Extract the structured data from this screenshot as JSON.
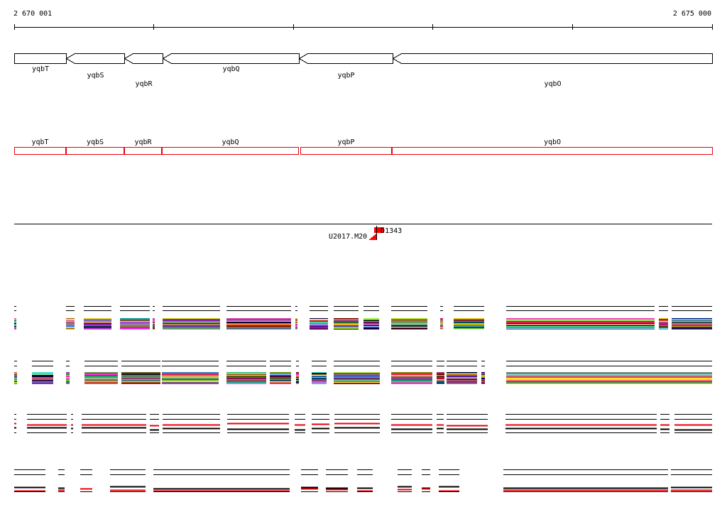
{
  "axis": {
    "start_label": "2 670 001",
    "end_label": "2 675 000",
    "start": 2670001,
    "end": 2675000
  },
  "colors": {
    "gene_outline": "#000000",
    "annotation_outline": "#e8000b",
    "marker_fill": "#ff0000",
    "black": "#000000",
    "red": "#e8000b"
  },
  "genes": [
    {
      "name": "yqbT",
      "start": 2670001,
      "end": 2670370,
      "strand": "+"
    },
    {
      "name": "yqbS",
      "start": 2670370,
      "end": 2670790,
      "strand": "-"
    },
    {
      "name": "yqbR",
      "start": 2670790,
      "end": 2671065,
      "strand": "-"
    },
    {
      "name": "yqbQ",
      "start": 2671065,
      "end": 2672040,
      "strand": "-"
    },
    {
      "name": "yqbP",
      "start": 2672040,
      "end": 2672710,
      "strand": "-"
    },
    {
      "name": "yqbO",
      "start": 2672710,
      "end": 2675000,
      "strand": "-"
    }
  ],
  "annotations": [
    {
      "name": "yqbT",
      "start": 2670001,
      "end": 2670365
    },
    {
      "name": "yqbS",
      "start": 2670370,
      "end": 2670785
    },
    {
      "name": "yqbR",
      "start": 2670790,
      "end": 2671055
    },
    {
      "name": "yqbQ",
      "start": 2671060,
      "end": 2672035
    },
    {
      "name": "yqbP",
      "start": 2672050,
      "end": 2672700
    },
    {
      "name": "yqbO",
      "start": 2672705,
      "end": 2675000
    }
  ],
  "markers": [
    {
      "name": "U2017.M20",
      "position": 2672565
    },
    {
      "name": "D1343",
      "position": 2672605
    }
  ],
  "tracks": [
    {
      "id": "track-1",
      "style": "multicolor",
      "segments": [
        [
          2670001,
          2670010
        ],
        [
          2670370,
          2670435
        ],
        [
          2670500,
          2670700
        ],
        [
          2670760,
          2670970
        ],
        [
          2670995,
          2671005
        ],
        [
          2671065,
          2671475
        ],
        [
          2671520,
          2671985
        ],
        [
          2672015,
          2672030
        ],
        [
          2672115,
          2672250
        ],
        [
          2672290,
          2672465
        ],
        [
          2672505,
          2672615
        ],
        [
          2672700,
          2672960
        ],
        [
          2673050,
          2673075
        ],
        [
          2673150,
          2673370
        ],
        [
          2673525,
          2674590
        ],
        [
          2674620,
          2674685
        ],
        [
          2674710,
          2675000
        ]
      ]
    },
    {
      "id": "track-2",
      "style": "multicolor",
      "segments": [
        [
          2670001,
          2670020
        ],
        [
          2670130,
          2670280
        ],
        [
          2670370,
          2670400
        ],
        [
          2670505,
          2670745
        ],
        [
          2670770,
          2671050
        ],
        [
          2671060,
          2671465
        ],
        [
          2671520,
          2671805
        ],
        [
          2671830,
          2671985
        ],
        [
          2672020,
          2672040
        ],
        [
          2672130,
          2672240
        ],
        [
          2672290,
          2672620
        ],
        [
          2672700,
          2672995
        ],
        [
          2673025,
          2673085
        ],
        [
          2673100,
          2673315
        ],
        [
          2673345,
          2673375
        ],
        [
          2673525,
          2675000
        ]
      ]
    },
    {
      "id": "track-3",
      "style": "redblack",
      "segments": [
        [
          2670001,
          2670015
        ],
        [
          2670090,
          2670375
        ],
        [
          2670410,
          2670420
        ],
        [
          2670485,
          2670945
        ],
        [
          2670970,
          2671040
        ],
        [
          2671065,
          2671475
        ],
        [
          2671525,
          2671970
        ],
        [
          2672010,
          2672085
        ],
        [
          2672130,
          2672260
        ],
        [
          2672295,
          2672620
        ],
        [
          2672700,
          2672995
        ],
        [
          2673025,
          2673080
        ],
        [
          2673100,
          2673395
        ],
        [
          2673520,
          2674605
        ],
        [
          2674630,
          2674695
        ],
        [
          2674730,
          2675000
        ]
      ]
    },
    {
      "id": "track-4",
      "style": "redblack",
      "segments": [
        [
          2670001,
          2670225
        ],
        [
          2670315,
          2670360
        ],
        [
          2670475,
          2670560
        ],
        [
          2670690,
          2670940
        ],
        [
          2671000,
          2671975
        ],
        [
          2672055,
          2672180
        ],
        [
          2672235,
          2672390
        ],
        [
          2672455,
          2672570
        ],
        [
          2672745,
          2672850
        ],
        [
          2672920,
          2672980
        ],
        [
          2673040,
          2673190
        ],
        [
          2673505,
          2674685
        ],
        [
          2674705,
          2675000
        ]
      ]
    }
  ]
}
